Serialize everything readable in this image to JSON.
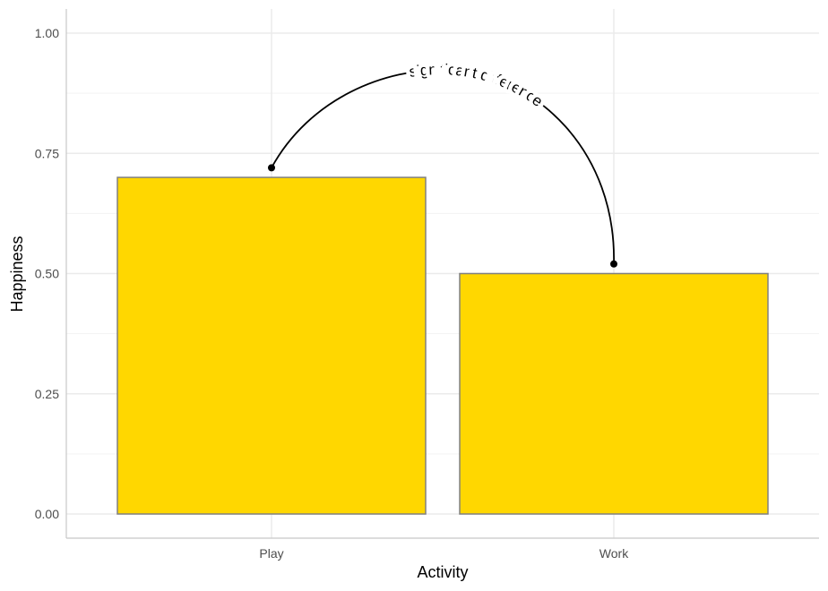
{
  "chart_data": {
    "type": "bar",
    "categories": [
      "Play",
      "Work"
    ],
    "values": [
      0.7,
      0.5
    ],
    "xlabel": "Activity",
    "ylabel": "Happiness",
    "ylim": [
      0,
      1
    ],
    "yticks": [
      "0.00",
      "0.25",
      "0.50",
      "0.75",
      "1.00"
    ],
    "grid": true,
    "bar_fill": "#FFD700",
    "bar_outline": "#808080",
    "annotation": {
      "text": "significant difference",
      "from": {
        "category": "Play",
        "y": 0.72
      },
      "to": {
        "category": "Work",
        "y": 0.52
      }
    }
  }
}
